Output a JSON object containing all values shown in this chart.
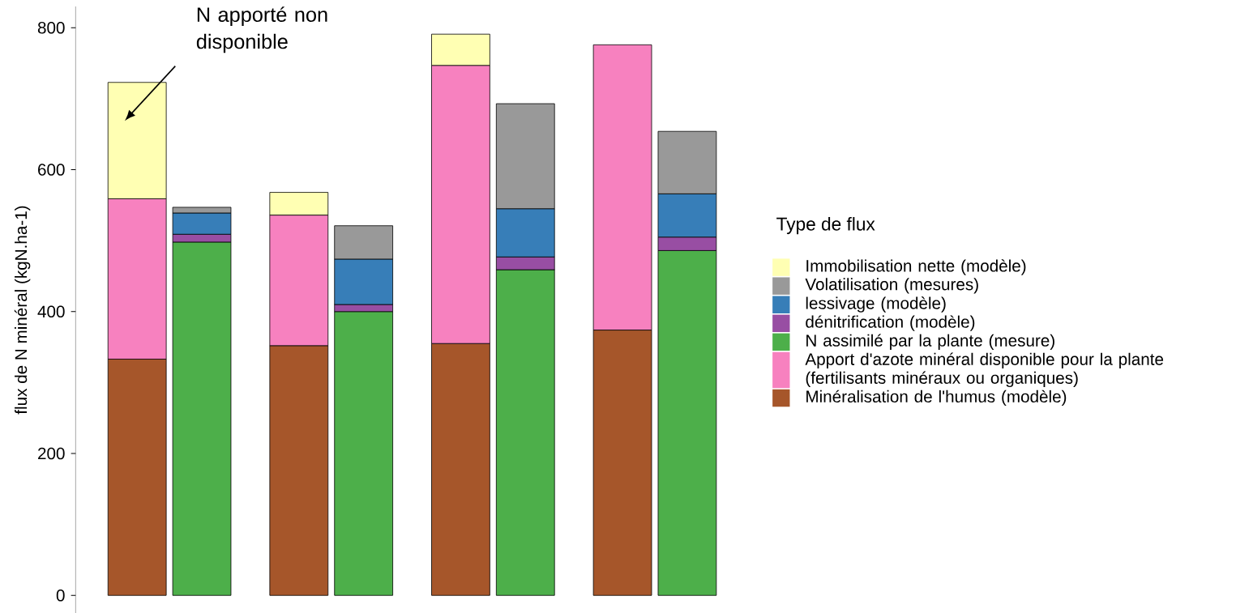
{
  "chart_data": {
    "type": "bar",
    "stacked": true,
    "ylabel": "flux de N minéral (kgN.ha-1)",
    "legend_title": "Type de flux",
    "legend": "right",
    "categories": [
      null,
      null,
      null,
      null,
      null,
      null,
      null,
      null
    ],
    "ylim": [
      -25,
      830
    ],
    "yticks": [
      0,
      200,
      400,
      600,
      800
    ],
    "annotations": [
      "N apporté non disponible"
    ],
    "series": [
      {
        "name": "Minéralisation de l'humus (modèle)",
        "color": "#a6562a",
        "values": [
          333,
          null,
          352,
          null,
          355,
          null,
          374,
          null
        ]
      },
      {
        "name": "Apport d'azote minéral disponible pour la plante (fertilisants minéraux ou organiques)",
        "color": "#f781bf",
        "values": [
          226,
          null,
          184,
          null,
          392,
          null,
          402,
          null
        ]
      },
      {
        "name": "N assimilé par la plante (mesure)",
        "color": "#4daf4a",
        "values": [
          null,
          498,
          null,
          400,
          null,
          459,
          null,
          486
        ]
      },
      {
        "name": "dénitrification (modèle)",
        "color": "#984ea3",
        "values": [
          null,
          11,
          null,
          10,
          null,
          18,
          null,
          19
        ]
      },
      {
        "name": "lessivage (modèle)",
        "color": "#377eb8",
        "values": [
          null,
          30,
          null,
          64,
          null,
          68,
          null,
          61
        ]
      },
      {
        "name": "Volatilisation (mesures)",
        "color": "#999999",
        "values": [
          null,
          8,
          null,
          47,
          null,
          148,
          null,
          88
        ]
      },
      {
        "name": "Immobilisation nette (modèle)",
        "color": "#ffffb3",
        "values": [
          164,
          null,
          32,
          null,
          44,
          null,
          null,
          null
        ]
      }
    ]
  }
}
